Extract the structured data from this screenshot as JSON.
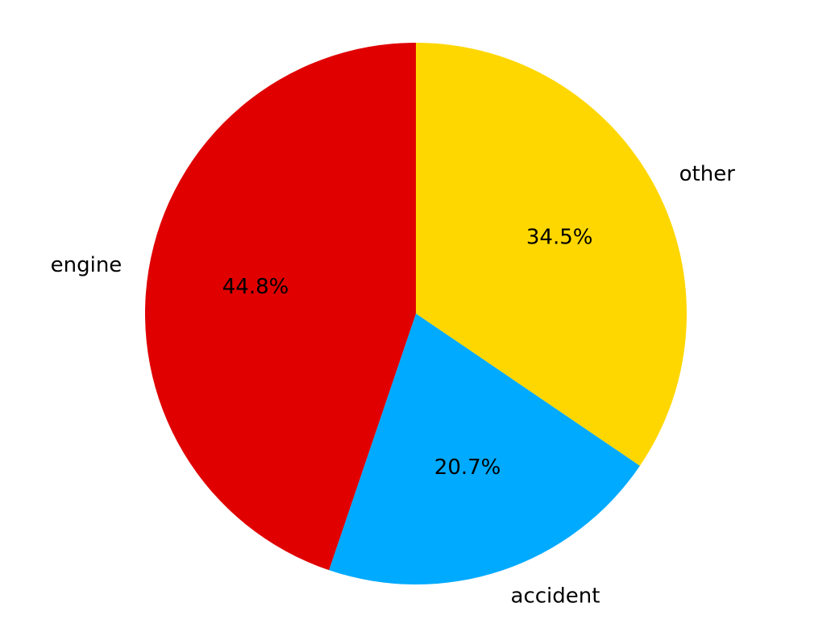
{
  "chart_data": {
    "type": "pie",
    "direction": "clockwise",
    "start": "top",
    "legend": false,
    "slices": [
      {
        "label": "other",
        "value": 34.5,
        "pct_label": "34.5%",
        "color": "#FFD700"
      },
      {
        "label": "accident",
        "value": 20.7,
        "pct_label": "20.7%",
        "color": "#00AAFF"
      },
      {
        "label": "engine",
        "value": 44.8,
        "pct_label": "44.8%",
        "color": "#E00000"
      }
    ]
  }
}
